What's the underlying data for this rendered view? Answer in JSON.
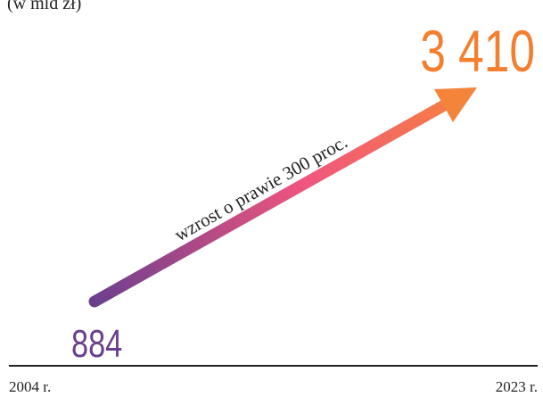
{
  "subtitle": "(w mld zł)",
  "start": {
    "value": "884",
    "year": "2004 r."
  },
  "end": {
    "value": "3 410",
    "year": "2023 r."
  },
  "annotation": "wzrost o prawie 300 proc."
}
